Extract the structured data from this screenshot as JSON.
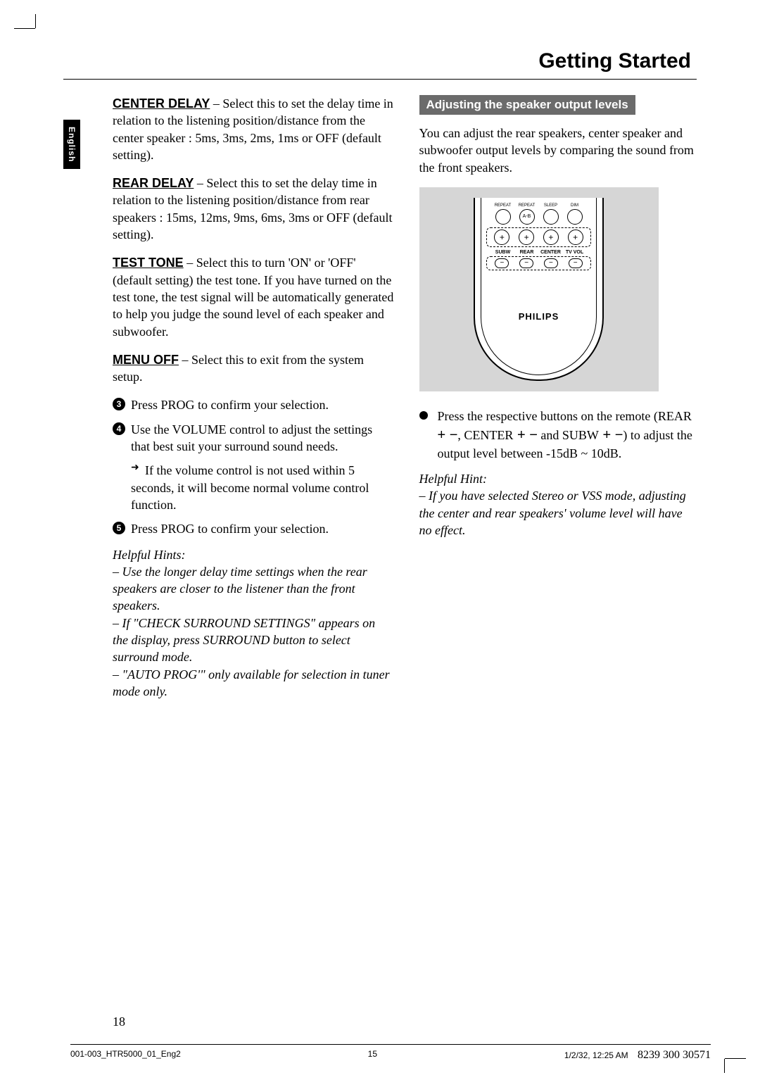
{
  "page": {
    "title": "Getting Started",
    "language_tab": "English",
    "page_number": "18"
  },
  "left": {
    "center_delay": {
      "label": "CENTER DELAY",
      "text": " – Select this to set the delay time in relation to the listening position/distance from the center speaker : 5ms, 3ms, 2ms, 1ms or OFF (default setting)."
    },
    "rear_delay": {
      "label": "REAR DELAY",
      "text": " – Select this to set the delay time in relation to the listening position/distance from rear speakers : 15ms, 12ms, 9ms, 6ms, 3ms or OFF (default setting)."
    },
    "test_tone": {
      "label": "TEST TONE",
      "text": " – Select this to turn 'ON' or 'OFF' (default setting) the test tone. If you have turned on the test tone, the test signal will be automatically generated to help you judge the sound level of each speaker and subwoofer."
    },
    "menu_off": {
      "label": "MENU OFF",
      "text": " – Select this to exit from the system setup."
    },
    "step3": {
      "num": "3",
      "pre": "Press ",
      "bold": "PROG",
      "post": " to confirm your selection."
    },
    "step4": {
      "num": "4",
      "pre": "Use the ",
      "bold": "VOLUME",
      "post": " control to adjust the settings that best suit your surround sound needs."
    },
    "step4_sub": "If the volume control is not used within 5 seconds, it will become normal volume control function.",
    "step5": {
      "num": "5",
      "pre": "Press ",
      "bold": "PROG",
      "post": " to confirm your selection."
    },
    "hints_title": "Helpful Hints:",
    "hint1": "–  Use the longer delay time settings when the rear speakers are closer to the listener than the front speakers.",
    "hint2": "–  If \"CHECK SURROUND SETTINGS\" appears on the display, press SURROUND button to select surround mode.",
    "hint3": "–  \"AUTO PROG'\" only available for selection in tuner mode only."
  },
  "right": {
    "banner": "Adjusting the speaker output levels",
    "intro": "You can adjust the rear speakers, center speaker and subwoofer output levels by comparing the sound from the front speakers.",
    "remote": {
      "top_labels": [
        "REPEAT",
        "REPEAT",
        "SLEEP",
        "DIM"
      ],
      "ab": "A-B",
      "col_labels": [
        "SUBW",
        "REAR",
        "CENTER",
        "TV VOL"
      ],
      "brand": "PHILIPS"
    },
    "bullet": {
      "t1": "Press the respective buttons on the remote (",
      "b1": "REAR",
      "pm1": " + −",
      "t2": ", ",
      "b2": "CENTER",
      "pm2": " + −",
      "t3": " and ",
      "b3": "SUBW",
      "pm3": " + −",
      "t4": ") to adjust the output level between -15dB ~ 10dB."
    },
    "hint_title": "Helpful Hint:",
    "hint": "–  If you have selected Stereo or VSS mode, adjusting the center and rear speakers' volume level will have no effect."
  },
  "footer": {
    "file": "001-003_HTR5000_01_Eng2",
    "pg": "15",
    "date": "1/2/32, 12:25 AM",
    "docid": "8239 300 30571"
  }
}
